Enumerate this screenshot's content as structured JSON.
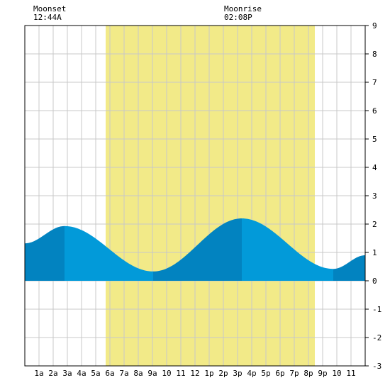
{
  "chart_data": {
    "type": "area",
    "title": "",
    "xlabel": "",
    "ylabel": "",
    "xlim": [
      0,
      24
    ],
    "ylim": [
      -3,
      9
    ],
    "y_ticks": [
      -3,
      -2,
      -1,
      0,
      1,
      2,
      3,
      4,
      5,
      6,
      7,
      8,
      9
    ],
    "x_tick_hours": [
      1,
      2,
      3,
      4,
      5,
      6,
      7,
      8,
      9,
      10,
      11,
      12,
      13,
      14,
      15,
      16,
      17,
      18,
      19,
      20,
      21,
      22,
      23
    ],
    "x_tick_labels": [
      "1a",
      "2a",
      "3a",
      "4a",
      "5a",
      "6a",
      "7a",
      "8a",
      "9a",
      "10",
      "11",
      "12",
      "1p",
      "2p",
      "3p",
      "4p",
      "5p",
      "6p",
      "7p",
      "8p",
      "9p",
      "10",
      "11"
    ],
    "grid": true,
    "daylight": {
      "start_hour": 5.7,
      "end_hour": 20.45
    },
    "extremes": [
      {
        "hour": 0,
        "height": 1.32
      },
      {
        "hour": 2.8,
        "height": 1.93
      },
      {
        "hour": 9.05,
        "height": 0.33
      },
      {
        "hour": 15.3,
        "height": 2.2
      },
      {
        "hour": 21.75,
        "height": 0.42
      },
      {
        "hour": 24,
        "height": 0.9
      }
    ],
    "colors": {
      "daylight": "#f2ea88",
      "tide_rising": "#0283c0",
      "tide_falling": "#029ad9",
      "grid": "#c8c8c8",
      "frame": "#000000"
    }
  },
  "moon": {
    "set_label": "Moonset",
    "set_time": "12:44A",
    "rise_label": "Moonrise",
    "rise_time": "02:08P"
  }
}
